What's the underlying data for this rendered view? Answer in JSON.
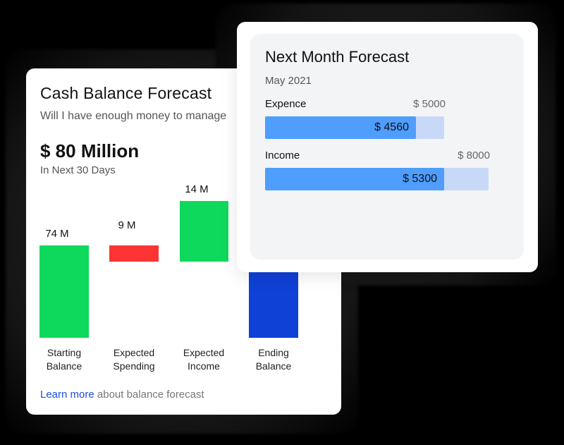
{
  "cash_balance_card": {
    "title": "Cash Balance Forecast",
    "subtitle": "Will I have enough money to manage",
    "total_value": "$ 80 Million",
    "period": "In Next 30 Days",
    "learn_more_link": "Learn more",
    "learn_more_rest": "about balance forecast"
  },
  "next_month_card": {
    "title": "Next Month Forecast",
    "date": "May 2021",
    "rows": [
      {
        "label": "Expence",
        "max_label": "$ 5000",
        "value_label": "$ 4560",
        "value": 4560,
        "max": 5000
      },
      {
        "label": "Income",
        "max_label": "$ 8000",
        "value_label": "$ 5300",
        "value": 5300,
        "max": 8000
      }
    ]
  },
  "colors": {
    "positive": "#0fd95c",
    "negative": "#fc3434",
    "ending": "#1041d6",
    "bar_fill": "#4f9dfc",
    "bar_track": "#c8d9f7",
    "link": "#1f4fe0"
  },
  "chart_data": [
    {
      "type": "bar",
      "subtype": "waterfall",
      "title": "Cash Balance Forecast",
      "categories": [
        "Starting Balance",
        "Expected Spending",
        "Expected Income",
        "Ending Balance"
      ],
      "values": [
        74,
        -9,
        14,
        79
      ],
      "data_labels": [
        "74 M",
        "9 M",
        "14 M",
        ""
      ],
      "unit": "M",
      "xlabel": "",
      "ylabel": "",
      "grid": false,
      "legend": "none"
    },
    {
      "type": "bar",
      "subtype": "progress",
      "title": "Next Month Forecast",
      "categories": [
        "Expence",
        "Income"
      ],
      "values": [
        4560,
        5300
      ],
      "max": [
        5000,
        8000
      ],
      "orientation": "horizontal"
    }
  ]
}
